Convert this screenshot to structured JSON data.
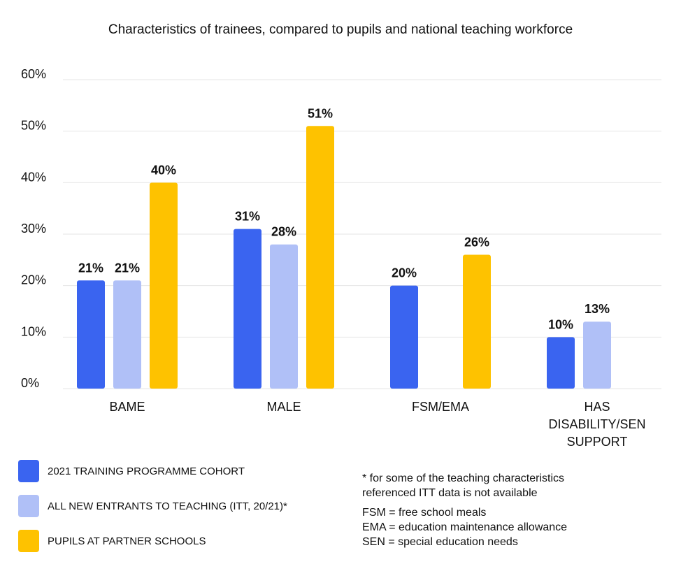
{
  "title": "Characteristics of trainees, compared to pupils and national teaching workforce",
  "colors": {
    "cohort": "#3a64f0",
    "itt": "#b0c0f7",
    "pupils": "#fec200",
    "grid": "#e6e6e6",
    "text": "#111111"
  },
  "chart_data": {
    "type": "bar",
    "categories": [
      "BAME",
      "MALE",
      "FSM/EMA",
      "HAS DISABILITY/SEN SUPPORT"
    ],
    "category_lines": [
      [
        "BAME"
      ],
      [
        "MALE"
      ],
      [
        "FSM/EMA"
      ],
      [
        "HAS",
        "DISABILITY/SEN",
        "SUPPORT"
      ]
    ],
    "series": [
      {
        "name": "2021 TRAINING PROGRAMME COHORT",
        "values": [
          21,
          31,
          20,
          10
        ],
        "labels": [
          "21%",
          "31%",
          "20%",
          "10%"
        ],
        "color": "#3a64f0"
      },
      {
        "name": "ALL NEW ENTRANTS TO TEACHING (ITT, 20/21)*",
        "values": [
          21,
          28,
          null,
          13
        ],
        "labels": [
          "21%",
          "28%",
          null,
          "13%"
        ],
        "color": "#b0c0f7"
      },
      {
        "name": "PUPILS AT PARTNER SCHOOLS",
        "values": [
          40,
          51,
          26,
          null
        ],
        "labels": [
          "40%",
          "51%",
          "26%",
          null
        ],
        "color": "#fec200"
      }
    ],
    "yticks": [
      0,
      10,
      20,
      30,
      40,
      50,
      60
    ],
    "ytick_labels": [
      "0%",
      "10%",
      "20%",
      "30%",
      "40%",
      "50%",
      "60%"
    ],
    "ylim": [
      0,
      60
    ],
    "grid": true,
    "legend_position": "bottom-left"
  },
  "legend": [
    {
      "label": "2021 TRAINING PROGRAMME COHORT",
      "color": "#3a64f0"
    },
    {
      "label": "ALL NEW ENTRANTS TO TEACHING (ITT, 20/21)*",
      "color": "#b0c0f7"
    },
    {
      "label": "PUPILS AT PARTNER SCHOOLS",
      "color": "#fec200"
    }
  ],
  "notes": {
    "footnote_lines": [
      "* for some of the teaching characteristics",
      "referenced ITT data is not available"
    ],
    "abbreviations": [
      "FSM = free school meals",
      "EMA = education maintenance allowance",
      "SEN = special education needs"
    ]
  }
}
